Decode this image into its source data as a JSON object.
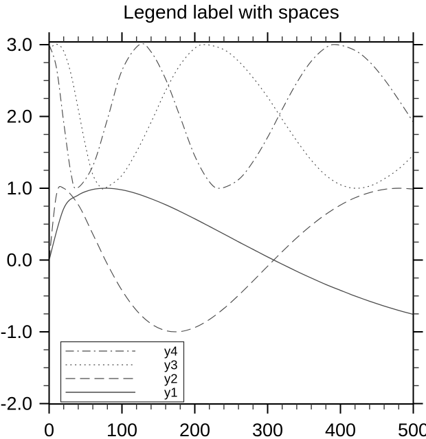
{
  "title": "Legend label with spaces",
  "chart_data": {
    "type": "line",
    "title": "Legend label with spaces",
    "xlabel": "",
    "ylabel": "",
    "xlim": [
      0,
      500
    ],
    "ylim": [
      -2.0,
      3.0
    ],
    "grid": false,
    "background": "#ffffff",
    "axis_color": "#000000",
    "line_color": "#4a4a4a",
    "x_ticks": {
      "major": [
        0,
        100,
        200,
        300,
        400,
        500
      ],
      "labels": [
        "0",
        "100",
        "200",
        "300",
        "400",
        "500"
      ],
      "minor_step": 20
    },
    "y_ticks": {
      "major": [
        3.0,
        2.0,
        1.0,
        0.0,
        -1.0,
        -2.0
      ],
      "labels": [
        "3.0",
        "2.0",
        "1.0",
        "0.0",
        "-1.0",
        "-2.0"
      ],
      "minor_step": 0.25
    },
    "legend": {
      "position": "lower-left",
      "entries": [
        "y4",
        "y3",
        "y2",
        "y1"
      ]
    },
    "series": [
      {
        "name": "y1",
        "style": "solid",
        "dash": [],
        "points": [
          [
            0,
            0
          ],
          [
            20,
            0.717
          ],
          [
            40,
            0.905
          ],
          [
            60,
            0.983
          ],
          [
            80,
            1.0
          ],
          [
            100,
            0.977
          ],
          [
            120,
            0.926
          ],
          [
            140,
            0.854
          ],
          [
            160,
            0.77
          ],
          [
            180,
            0.676
          ],
          [
            200,
            0.574
          ],
          [
            220,
            0.469
          ],
          [
            240,
            0.362
          ],
          [
            260,
            0.254
          ],
          [
            280,
            0.148
          ],
          [
            300,
            0.043
          ],
          [
            320,
            -0.058
          ],
          [
            340,
            -0.157
          ],
          [
            360,
            -0.251
          ],
          [
            380,
            -0.341
          ],
          [
            400,
            -0.422
          ],
          [
            420,
            -0.501
          ],
          [
            440,
            -0.574
          ],
          [
            460,
            -0.641
          ],
          [
            480,
            -0.702
          ],
          [
            500,
            -0.757
          ]
        ]
      },
      {
        "name": "y2",
        "style": "dashed",
        "dash": [
          14,
          7
        ],
        "points": [
          [
            0,
            0
          ],
          [
            10,
            0.905
          ],
          [
            20,
            1.0
          ],
          [
            40,
            0.77
          ],
          [
            60,
            0.362
          ],
          [
            80,
            -0.058
          ],
          [
            100,
            -0.422
          ],
          [
            120,
            -0.702
          ],
          [
            140,
            -0.888
          ],
          [
            160,
            -0.983
          ],
          [
            180,
            -0.996
          ],
          [
            200,
            -0.94
          ],
          [
            220,
            -0.829
          ],
          [
            240,
            -0.675
          ],
          [
            260,
            -0.492
          ],
          [
            280,
            -0.292
          ],
          [
            300,
            -0.086
          ],
          [
            320,
            0.117
          ],
          [
            340,
            0.309
          ],
          [
            360,
            0.484
          ],
          [
            380,
            0.637
          ],
          [
            400,
            0.766
          ],
          [
            420,
            0.867
          ],
          [
            440,
            0.939
          ],
          [
            460,
            0.984
          ],
          [
            480,
            1.0
          ],
          [
            500,
            0.989
          ]
        ]
      },
      {
        "name": "y3",
        "style": "dotted",
        "dash": [
          2,
          4.8
        ],
        "points": [
          [
            0,
            2.93
          ],
          [
            6,
            2.99
          ],
          [
            12,
            3.0
          ],
          [
            20,
            2.91
          ],
          [
            30,
            2.59
          ],
          [
            40,
            2.1
          ],
          [
            50,
            1.59
          ],
          [
            60,
            1.19
          ],
          [
            72,
            1.0
          ],
          [
            80,
            1.02
          ],
          [
            100,
            1.18
          ],
          [
            120,
            1.51
          ],
          [
            140,
            1.92
          ],
          [
            160,
            2.36
          ],
          [
            180,
            2.72
          ],
          [
            200,
            2.95
          ],
          [
            215,
            3.0
          ],
          [
            240,
            2.93
          ],
          [
            260,
            2.77
          ],
          [
            280,
            2.54
          ],
          [
            300,
            2.27
          ],
          [
            320,
            1.96
          ],
          [
            340,
            1.66
          ],
          [
            360,
            1.39
          ],
          [
            380,
            1.18
          ],
          [
            400,
            1.05
          ],
          [
            420,
            1.0
          ],
          [
            440,
            1.03
          ],
          [
            460,
            1.13
          ],
          [
            480,
            1.27
          ],
          [
            500,
            1.46
          ]
        ]
      },
      {
        "name": "y4",
        "style": "dash-dot",
        "dash": [
          12,
          5,
          2.2,
          5
        ],
        "points": [
          [
            0,
            3.0
          ],
          [
            10,
            2.68
          ],
          [
            20,
            1.92
          ],
          [
            30,
            1.21
          ],
          [
            38,
            1.0
          ],
          [
            60,
            1.31
          ],
          [
            80,
            1.96
          ],
          [
            100,
            2.64
          ],
          [
            124,
            3.0
          ],
          [
            140,
            2.9
          ],
          [
            160,
            2.52
          ],
          [
            180,
            1.99
          ],
          [
            200,
            1.45
          ],
          [
            220,
            1.09
          ],
          [
            235,
            1.0
          ],
          [
            260,
            1.12
          ],
          [
            280,
            1.37
          ],
          [
            300,
            1.71
          ],
          [
            320,
            2.1
          ],
          [
            340,
            2.47
          ],
          [
            360,
            2.77
          ],
          [
            380,
            2.96
          ],
          [
            395,
            3.0
          ],
          [
            420,
            2.92
          ],
          [
            440,
            2.76
          ],
          [
            460,
            2.52
          ],
          [
            480,
            2.23
          ],
          [
            500,
            1.92
          ]
        ]
      }
    ]
  }
}
